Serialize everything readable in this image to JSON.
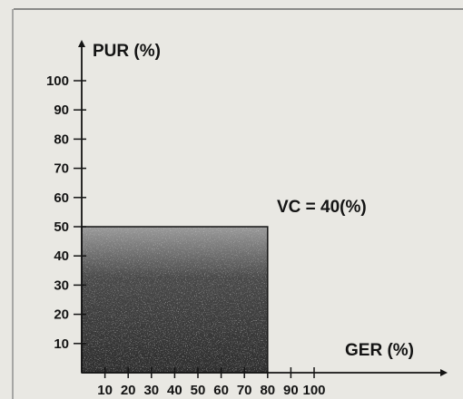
{
  "chart_data": {
    "type": "area",
    "xlabel": "GER (%)",
    "ylabel": "PUR (%)",
    "xlim": [
      0,
      110
    ],
    "ylim": [
      0,
      110
    ],
    "x_ticks": [
      10,
      20,
      30,
      40,
      50,
      60,
      70,
      80,
      90,
      100
    ],
    "y_ticks": [
      10,
      20,
      30,
      40,
      50,
      60,
      70,
      80,
      90,
      100
    ],
    "region": {
      "x": [
        0,
        80
      ],
      "y": [
        0,
        50
      ]
    },
    "annotation": "VC = 40(%)",
    "grid": false,
    "colors": {
      "fill": "#3a3a3a",
      "axis": "#141414",
      "background": "#e9e8e3"
    }
  }
}
